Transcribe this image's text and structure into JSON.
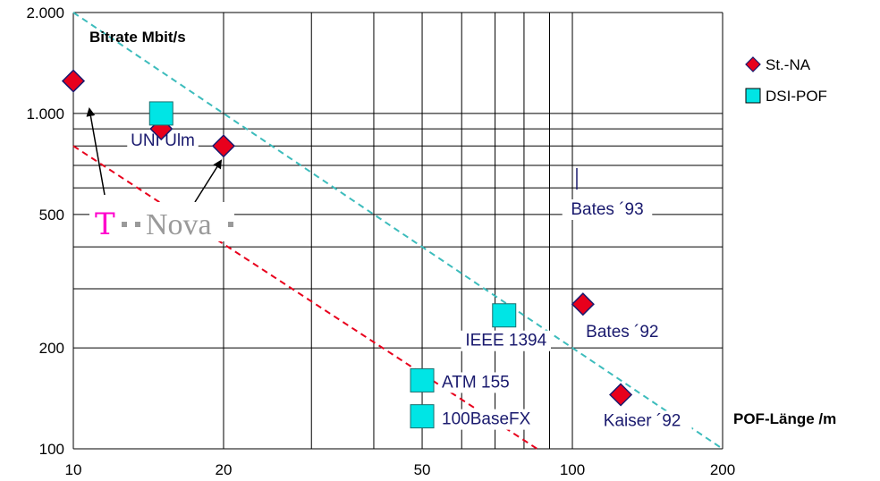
{
  "chart_data": {
    "type": "scatter",
    "x_scale": "log",
    "y_scale": "log",
    "xlim": [
      10,
      200
    ],
    "ylim": [
      100,
      2000
    ],
    "xlabel": "POF-Länge /m",
    "ylabel": "Bitrate Mbit/s",
    "x_ticks": [
      {
        "value": 10,
        "label": "10"
      },
      {
        "value": 20,
        "label": "20"
      },
      {
        "value": 50,
        "label": "50"
      },
      {
        "value": 100,
        "label": "100"
      },
      {
        "value": 200,
        "label": "200"
      }
    ],
    "y_ticks": [
      {
        "value": 100,
        "label": "100"
      },
      {
        "value": 200,
        "label": "200"
      },
      {
        "value": 500,
        "label": "500"
      },
      {
        "value": 1000,
        "label": "1.000"
      },
      {
        "value": 2000,
        "label": "2.000"
      }
    ],
    "grid": true,
    "legend_position": "top-right",
    "series": [
      {
        "name": "St.-NA",
        "marker": "diamond",
        "color": "#e8001c",
        "points": [
          {
            "x": 10,
            "y": 1250,
            "label": ""
          },
          {
            "x": 15,
            "y": 900,
            "label": ""
          },
          {
            "x": 20,
            "y": 800,
            "label": ""
          },
          {
            "x": 105,
            "y": 270,
            "label": "Bates ´92"
          },
          {
            "x": 125,
            "y": 145,
            "label": "Kaiser ´92"
          }
        ]
      },
      {
        "name": "DSI-POF",
        "marker": "square",
        "color": "#00e5e5",
        "points": [
          {
            "x": 15,
            "y": 1000,
            "label": ""
          },
          {
            "x": 73,
            "y": 250,
            "label": "IEEE 1394"
          },
          {
            "x": 50,
            "y": 160,
            "label": "ATM 155"
          },
          {
            "x": 50,
            "y": 125,
            "label": "100BaseFX"
          }
        ]
      }
    ],
    "annotations": [
      {
        "text": "UNI Ulm",
        "x": 15,
        "y": 800
      },
      {
        "text": "Bates ´93",
        "x": 105,
        "y": 520
      }
    ],
    "trend_lines": [
      {
        "color": "#e8001c",
        "style": "dashed",
        "from": [
          10,
          800
        ],
        "to": [
          85,
          100
        ]
      },
      {
        "color": "#3cbcbc",
        "style": "dashed",
        "from": [
          10,
          2000
        ],
        "to": [
          200,
          100
        ]
      }
    ],
    "logo": {
      "letter": "T",
      "word": "Nova"
    }
  }
}
